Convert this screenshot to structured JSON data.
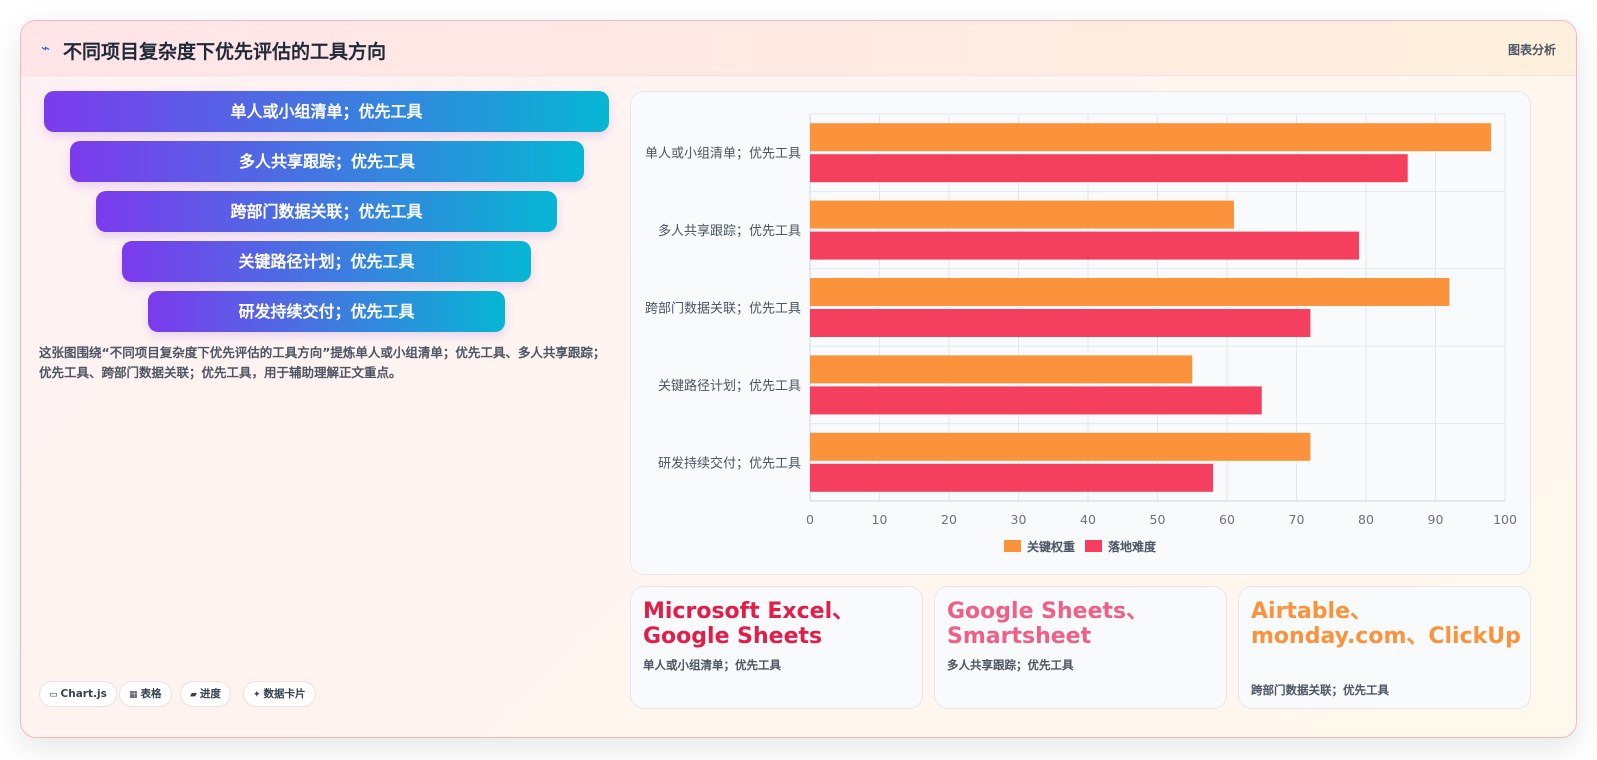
{
  "header": {
    "icon": "zigzag-icon",
    "title": "不同项目复杂度下优先评估的工具方向",
    "badge": "图表分析"
  },
  "funnel": [
    {
      "label": "单人或小组清单；优先工具"
    },
    {
      "label": "多人共享跟踪；优先工具"
    },
    {
      "label": "跨部门数据关联；优先工具"
    },
    {
      "label": "关键路径计划；优先工具"
    },
    {
      "label": "研发持续交付；优先工具"
    }
  ],
  "description": "这张图围绕“不同项目复杂度下优先评估的工具方向”提炼单人或小组清单；优先工具、多人共享跟踪；优先工具、跨部门数据关联；优先工具，用于辅助理解正文重点。",
  "chips": [
    {
      "icon": "chart-icon",
      "glyph": "▭",
      "label": "Chart.js"
    },
    {
      "icon": "table-icon",
      "glyph": "▦",
      "label": "表格"
    },
    {
      "icon": "progress-icon",
      "glyph": "▰",
      "label": "进度"
    },
    {
      "icon": "sparkle-icon",
      "glyph": "✦",
      "label": "数据卡片"
    }
  ],
  "chart_data": {
    "type": "bar",
    "orientation": "horizontal",
    "categories": [
      "单人或小组清单；优先工具",
      "多人共享跟踪；优先工具",
      "跨部门数据关联；优先工具",
      "关键路径计划；优先工具",
      "研发持续交付；优先工具"
    ],
    "series": [
      {
        "name": "关键权重",
        "color": "#fb923c",
        "values": [
          98,
          61,
          92,
          55,
          72
        ]
      },
      {
        "name": "落地难度",
        "color": "#f43f5e",
        "values": [
          86,
          79,
          72,
          65,
          58
        ]
      }
    ],
    "xlim": [
      0,
      100
    ],
    "xticks": [
      "0",
      "10",
      "20",
      "30",
      "40",
      "50",
      "60",
      "70",
      "80",
      "90",
      "100"
    ],
    "grid": true,
    "legend": "bottom"
  },
  "cards": [
    {
      "title": "Microsoft Excel、Google Sheets",
      "subtitle": "单人或小组清单；优先工具",
      "color": "#e11d48"
    },
    {
      "title": "Google Sheets、Smartsheet",
      "subtitle": "多人共享跟踪；优先工具",
      "color": "#f06086"
    },
    {
      "title": "Airtable、monday.com、ClickUp",
      "subtitle": "跨部门数据关联；优先工具",
      "color": "#fb923c"
    }
  ]
}
